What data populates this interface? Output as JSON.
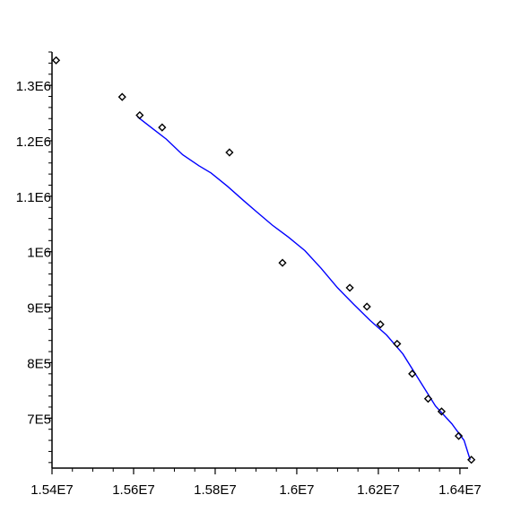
{
  "chart_data": {
    "type": "scatter",
    "title": "",
    "xlabel": "",
    "ylabel": "",
    "xlim": [
      15400000,
      16420000
    ],
    "ylim": [
      610000,
      1360000
    ],
    "grid": false,
    "x_ticks": [
      {
        "value": 15400000,
        "label": "1.54E7"
      },
      {
        "value": 15600000,
        "label": "1.56E7"
      },
      {
        "value": 15800000,
        "label": "1.58E7"
      },
      {
        "value": 16000000,
        "label": "1.6E7"
      },
      {
        "value": 16200000,
        "label": "1.62E7"
      },
      {
        "value": 16400000,
        "label": "1.64E7"
      }
    ],
    "y_ticks": [
      {
        "value": 700000,
        "label": "7E5"
      },
      {
        "value": 800000,
        "label": "8E5"
      },
      {
        "value": 900000,
        "label": "9E5"
      },
      {
        "value": 1000000,
        "label": "1E6"
      },
      {
        "value": 1100000,
        "label": "1.1E6"
      },
      {
        "value": 1200000,
        "label": "1.2E6"
      },
      {
        "value": 1300000,
        "label": "1.3E6"
      }
    ],
    "series": [
      {
        "kind": "points",
        "marker": "diamond",
        "color": "#000000",
        "x": [
          15410000,
          15572000,
          15615000,
          15670000,
          15835000,
          15965000,
          16130000,
          16172000,
          16205000,
          16246000,
          16283000,
          16322000,
          16355000,
          16397000,
          16428000
        ],
        "y": [
          1345000,
          1279000,
          1246000,
          1224000,
          1179000,
          980000,
          935000,
          901000,
          869000,
          834000,
          780000,
          735000,
          712000,
          668000,
          625000
        ]
      },
      {
        "kind": "line",
        "color": "#0000ff",
        "x": [
          15610000,
          15650000,
          15680000,
          15720000,
          15760000,
          15790000,
          15830000,
          15870000,
          15900000,
          15940000,
          15980000,
          16020000,
          16060000,
          16100000,
          16140000,
          16180000,
          16220000,
          16260000,
          16300000,
          16340000,
          16380000,
          16410000,
          16425000
        ],
        "y": [
          1243000,
          1220000,
          1203000,
          1175000,
          1155000,
          1142000,
          1118000,
          1092000,
          1073000,
          1048000,
          1026000,
          1002000,
          970000,
          935000,
          905000,
          876000,
          850000,
          816000,
          769000,
          722000,
          690000,
          660000,
          625000
        ]
      }
    ]
  }
}
